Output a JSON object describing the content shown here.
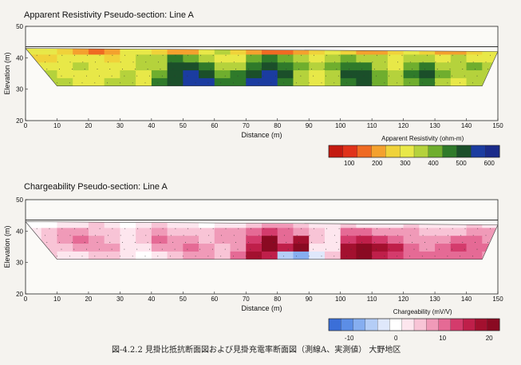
{
  "caption": "図-4.2.2 見掛比抵抗断面図および見掛充電率断面図（測線A、実測値） 大野地区",
  "chart_data": [
    {
      "type": "heatmap",
      "title": "Apparent Resistivity Pseudo-section: Line A",
      "xlabel": "Distance (m)",
      "ylabel": "Elevation (m)",
      "xlim": [
        0,
        150
      ],
      "ylim": [
        20,
        50
      ],
      "xticks": [
        "0",
        "10",
        "20",
        "30",
        "40",
        "50",
        "60",
        "70",
        "80",
        "90",
        "100",
        "110",
        "120",
        "130",
        "140",
        "150"
      ],
      "yticks": [
        "20",
        "30",
        "40",
        "50"
      ],
      "surface": [
        [
          0,
          43.5
        ],
        [
          150,
          43.5
        ]
      ],
      "section_polygon": [
        [
          0,
          43
        ],
        [
          150,
          42
        ],
        [
          145,
          31
        ],
        [
          10,
          31
        ]
      ],
      "colorbar": {
        "label": "Apparent Resistivity (ohm-m)",
        "ticks": [
          "100",
          "200",
          "300",
          "400",
          "500",
          "600"
        ],
        "colors": [
          "#c41a10",
          "#e0321a",
          "#ef6a22",
          "#f4a12e",
          "#f0d23a",
          "#e8e848",
          "#b5d23c",
          "#6fae2e",
          "#2f7a2a",
          "#1b4f2a",
          "#1b3ca0",
          "#1a2b8a"
        ]
      },
      "grid": [
        [
          5,
          5,
          4,
          3,
          2,
          3,
          5,
          5,
          4,
          3,
          3,
          5,
          6,
          4,
          3,
          2,
          2,
          3,
          4,
          5,
          4,
          3,
          3,
          4,
          5,
          4,
          3,
          3,
          4,
          5
        ],
        [
          4,
          4,
          5,
          5,
          5,
          4,
          5,
          6,
          6,
          8,
          7,
          6,
          5,
          5,
          7,
          8,
          7,
          6,
          5,
          6,
          7,
          6,
          6,
          5,
          6,
          6,
          5,
          6,
          5,
          5
        ],
        [
          5,
          5,
          5,
          6,
          5,
          5,
          5,
          6,
          6,
          9,
          9,
          8,
          6,
          6,
          8,
          9,
          8,
          7,
          6,
          7,
          8,
          8,
          6,
          5,
          7,
          8,
          6,
          6,
          7,
          6
        ],
        [
          6,
          6,
          5,
          5,
          5,
          5,
          6,
          5,
          7,
          9,
          10,
          9,
          7,
          8,
          9,
          10,
          9,
          6,
          5,
          6,
          9,
          9,
          7,
          6,
          8,
          9,
          7,
          6,
          6,
          6
        ],
        [
          6,
          6,
          6,
          5,
          5,
          6,
          6,
          5,
          8,
          9,
          10,
          10,
          8,
          8,
          10,
          10,
          8,
          6,
          5,
          6,
          8,
          9,
          7,
          6,
          7,
          8,
          6,
          5,
          6,
          6
        ]
      ]
    },
    {
      "type": "heatmap",
      "title": "Chargeability Pseudo-section: Line A",
      "xlabel": "Distance (m)",
      "ylabel": "Elevation (m)",
      "xlim": [
        0,
        150
      ],
      "ylim": [
        20,
        50
      ],
      "xticks": [
        "0",
        "10",
        "20",
        "30",
        "40",
        "50",
        "60",
        "70",
        "80",
        "90",
        "100",
        "110",
        "120",
        "130",
        "140",
        "150"
      ],
      "yticks": [
        "20",
        "30",
        "40",
        "50"
      ],
      "surface": [
        [
          0,
          43.5
        ],
        [
          150,
          43.5
        ]
      ],
      "section_polygon": [
        [
          0,
          43
        ],
        [
          150,
          42
        ],
        [
          145,
          31
        ],
        [
          10,
          31
        ]
      ],
      "colorbar": {
        "label": "Chargeability (mV/V)",
        "ticks": [
          "-10",
          "0",
          "10",
          "20"
        ],
        "colors": [
          "#3b6fd8",
          "#5c8ee6",
          "#86aef0",
          "#b4cdf6",
          "#dfe8fb",
          "#ffffff",
          "#fde6ee",
          "#f8c4d6",
          "#f09ab8",
          "#e56a95",
          "#d43b6c",
          "#bf1f4a",
          "#a3102f",
          "#8a0a22"
        ]
      },
      "grid": [
        [
          5,
          5,
          6,
          6,
          7,
          6,
          5,
          6,
          7,
          6,
          6,
          5,
          6,
          6,
          7,
          8,
          8,
          7,
          6,
          6,
          7,
          6,
          6,
          6,
          7,
          6,
          6,
          6,
          7,
          6
        ],
        [
          6,
          7,
          8,
          8,
          7,
          7,
          6,
          7,
          8,
          7,
          7,
          7,
          8,
          8,
          9,
          10,
          9,
          8,
          7,
          6,
          9,
          9,
          8,
          8,
          8,
          7,
          7,
          7,
          8,
          8
        ],
        [
          6,
          7,
          8,
          9,
          8,
          7,
          6,
          7,
          9,
          8,
          8,
          7,
          8,
          8,
          10,
          13,
          9,
          12,
          7,
          6,
          10,
          11,
          10,
          9,
          8,
          8,
          8,
          9,
          9,
          8
        ],
        [
          7,
          7,
          7,
          8,
          8,
          8,
          6,
          6,
          8,
          8,
          9,
          8,
          7,
          8,
          11,
          13,
          11,
          13,
          6,
          6,
          12,
          13,
          12,
          11,
          9,
          8,
          9,
          10,
          9,
          9
        ],
        [
          7,
          7,
          6,
          6,
          7,
          7,
          6,
          5,
          6,
          7,
          8,
          8,
          7,
          9,
          12,
          11,
          3,
          2,
          4,
          7,
          12,
          13,
          11,
          10,
          9,
          9,
          9,
          9,
          9,
          8
        ]
      ]
    }
  ]
}
